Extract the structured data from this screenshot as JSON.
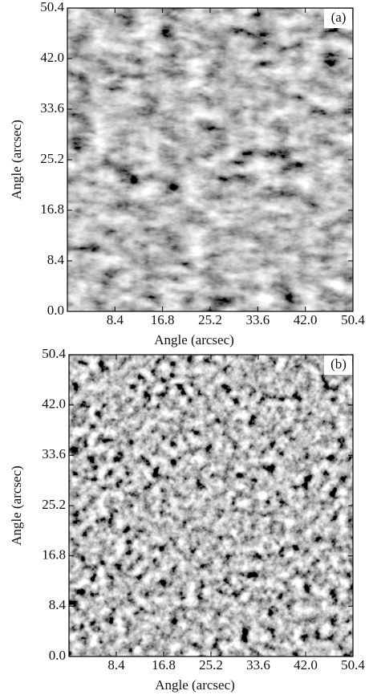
{
  "chart_data": [
    {
      "type": "image",
      "annotation": "(a)",
      "xlabel": "Angle (arcsec)",
      "ylabel": "Angle (arcsec)",
      "xlim": [
        0,
        50.4
      ],
      "ylim": [
        0,
        50.4
      ],
      "xticks": [
        8.4,
        16.8,
        25.2,
        33.6,
        {
          "value": 42,
          "label": "42.0"
        },
        50.4
      ],
      "yticks": [
        {
          "value": 0,
          "label": "0.0"
        },
        8.4,
        16.8,
        25.2,
        33.6,
        {
          "value": 42,
          "label": "42.0"
        },
        50.4
      ]
    },
    {
      "type": "image",
      "annotation": "(b)",
      "xlabel": "Angle (arcsec)",
      "ylabel": "Angle (arcsec)",
      "xlim": [
        0,
        50.4
      ],
      "ylim": [
        0,
        50.4
      ],
      "xticks": [
        8.4,
        16.8,
        25.2,
        33.6,
        {
          "value": 42,
          "label": "42.0"
        },
        50.4
      ],
      "yticks": [
        {
          "value": 0,
          "label": "0.0"
        },
        8.4,
        16.8,
        25.2,
        33.6,
        {
          "value": 42,
          "label": "42.0"
        },
        50.4
      ]
    }
  ]
}
